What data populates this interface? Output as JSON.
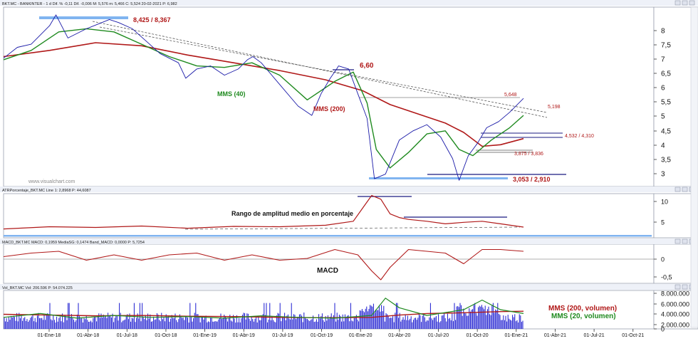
{
  "chart_data": [
    {
      "type": "line",
      "header": "BKT.MC - BANKINTER - 1 d Dif. % -0,11 Dif. -0,006 M: 5,576 m: 5,466 C: 5,524 20-02-2021 P: 6,982",
      "watermark": "www.visualchart.com",
      "ylim": [
        2.8,
        8.6
      ],
      "y_ticks": [
        "8",
        "7,5",
        "7",
        "6,5",
        "6",
        "5,5",
        "5",
        "4,5",
        "4",
        "3,5",
        "3"
      ],
      "series": [
        {
          "name": "",
          "color": "#1a1aa8",
          "x": [
            0,
            15,
            30,
            50,
            57,
            70,
            90,
            115,
            125,
            140,
            155,
            170,
            190,
            198,
            210,
            225,
            240,
            255,
            265,
            271,
            280,
            300,
            320,
            335,
            345,
            355,
            362,
            364,
            375,
            385,
            395,
            403,
            415,
            430,
            445,
            460,
            475,
            488,
            495,
            505,
            515,
            525,
            538,
            550,
            565
          ],
          "values": [
            6.95,
            7.3,
            7.4,
            8.0,
            8.35,
            7.6,
            7.9,
            8.2,
            8.1,
            7.9,
            7.5,
            7.1,
            6.8,
            6.3,
            6.6,
            6.7,
            6.4,
            6.6,
            6.9,
            7.0,
            6.8,
            6.1,
            5.4,
            5.1,
            5.8,
            6.3,
            6.6,
            6.7,
            6.6,
            5.8,
            5.0,
            3.05,
            3.2,
            4.3,
            4.6,
            4.8,
            4.4,
            3.7,
            3.0,
            3.8,
            4.2,
            4.7,
            4.9,
            5.2,
            5.65
          ]
        },
        {
          "name": "MMS (40)",
          "color": "#1f8a1f",
          "x": [
            0,
            30,
            60,
            90,
            120,
            150,
            180,
            210,
            240,
            270,
            300,
            330,
            360,
            380,
            395,
            405,
            420,
            440,
            460,
            480,
            495,
            510,
            530,
            550,
            565
          ],
          "values": [
            6.9,
            7.2,
            7.8,
            7.9,
            7.8,
            7.4,
            7.0,
            6.7,
            6.65,
            6.8,
            6.4,
            5.6,
            6.2,
            6.5,
            5.5,
            4.0,
            3.4,
            3.9,
            4.5,
            4.6,
            4.0,
            3.8,
            4.3,
            4.7,
            5.1
          ]
        },
        {
          "name": "MMS (200)",
          "color": "#b01818",
          "x": [
            0,
            50,
            100,
            150,
            200,
            250,
            300,
            350,
            390,
            420,
            450,
            480,
            500,
            520,
            540,
            565
          ],
          "values": [
            7.0,
            7.2,
            7.45,
            7.35,
            7.05,
            6.8,
            6.55,
            6.25,
            5.9,
            5.45,
            5.15,
            4.85,
            4.55,
            4.1,
            4.15,
            4.35
          ]
        }
      ],
      "annotations": [
        "8,425 / 8,367",
        "6,60",
        "5,648",
        "5,198",
        "4,532 / 4,310",
        "3,875 / 3,836",
        "3,053 / 2,910",
        "MMS (40)",
        "MMS (200)"
      ]
    },
    {
      "type": "line",
      "header": "ATRPorcentaje_BKT.MC Line 1: 2,8968 P: 44,6087",
      "ylim": [
        0,
        12
      ],
      "y_ticks": [
        "10",
        "5"
      ],
      "annotation": "Rango de amplitud medio en porcentaje",
      "series": [
        {
          "name": "",
          "color": "#b01818",
          "x": [
            0,
            50,
            100,
            150,
            200,
            250,
            300,
            350,
            380,
            400,
            410,
            420,
            430,
            440,
            460,
            480,
            500,
            520,
            540,
            565
          ],
          "values": [
            2.4,
            3.0,
            2.8,
            3.2,
            2.6,
            3.1,
            3.0,
            3.4,
            4.5,
            11.5,
            10.5,
            6.5,
            5.5,
            5.0,
            4.5,
            3.8,
            4.2,
            4.5,
            3.8,
            2.9
          ]
        }
      ]
    },
    {
      "type": "line",
      "header": "MACD_BKT.MC MACD: 0,1959 MediaSG: 0,1474 Band_MACD: 0,0000 P: 5,7254",
      "ylim": [
        -0.75,
        0.35
      ],
      "y_ticks": [
        "0",
        "-0,5"
      ],
      "annotation": "MACD",
      "series": [
        {
          "name": "",
          "color": "#b01818",
          "x": [
            0,
            30,
            60,
            90,
            120,
            150,
            180,
            210,
            240,
            270,
            300,
            330,
            360,
            385,
            400,
            410,
            420,
            440,
            460,
            480,
            500,
            520,
            540,
            565
          ],
          "values": [
            0.0,
            0.1,
            0.15,
            -0.1,
            0.05,
            -0.1,
            0.05,
            0.1,
            -0.1,
            0.05,
            -0.1,
            -0.05,
            0.2,
            0.05,
            -0.4,
            -0.65,
            -0.3,
            0.2,
            0.15,
            0.1,
            -0.2,
            0.2,
            0.2,
            0.15
          ]
        }
      ]
    },
    {
      "type": "bar",
      "header": "Vol_BKT.MC Vol: 206.596 P: 54.074.225",
      "ylim": [
        0,
        9000000
      ],
      "y_ticks": [
        "8.000.000",
        "6.000.000",
        "4.000.000",
        "2.000.000",
        "0"
      ],
      "series": [
        {
          "name": "MMS (200, volumen)",
          "color": "#b01818"
        },
        {
          "name": "MMS (20, volumen)",
          "color": "#1f8a1f"
        }
      ]
    }
  ],
  "x_axis": {
    "ticks": [
      "01-Ene-18",
      "01-Abr-18",
      "01-Jul-18",
      "01-Oct-18",
      "01-Ene-19",
      "01-Abr-19",
      "01-Jul-19",
      "01-Oct-19",
      "01-Ene-20",
      "01-Abr-20",
      "01-Jul-20",
      "01-Oct-20",
      "01-Ene-21",
      "01-Abr-21",
      "01-Jul-21",
      "01-Oct-21"
    ]
  },
  "colors": {
    "price": "#1a1aa8",
    "mms40": "#1f8a1f",
    "mms200": "#b01818",
    "highlight": "#80b4f0",
    "levels": "#1a1a80",
    "annotation_red": "#b01818",
    "annotation_green": "#1f8a1f"
  }
}
